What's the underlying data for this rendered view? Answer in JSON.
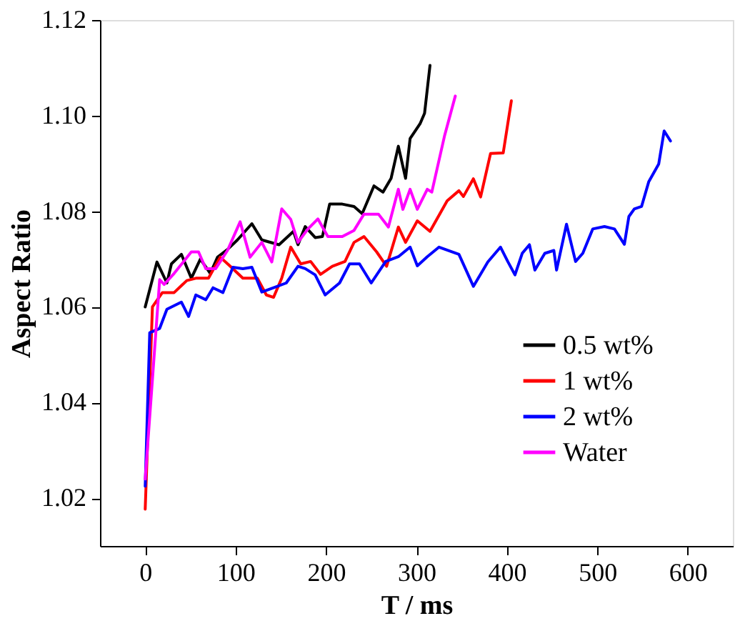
{
  "chart_data": {
    "type": "line",
    "xlabel": "T / ms",
    "ylabel": "Aspect Ratio",
    "xlim": [
      -50,
      650
    ],
    "xticks": [
      0,
      100,
      200,
      300,
      400,
      500,
      600
    ],
    "ylim": [
      1.01,
      1.12
    ],
    "yticks": [
      1.02,
      1.04,
      1.06,
      1.08,
      {
        "value": 1.1,
        "label": "1.10"
      },
      1.12
    ],
    "legend": "bottom right",
    "grid": false,
    "line_style": "solid",
    "series": [
      {
        "name": "0.5 wt%",
        "color": "#000000",
        "x": [
          0,
          13,
          24,
          29,
          40,
          51,
          61,
          72,
          80,
          91,
          102,
          118,
          129,
          148,
          164,
          169,
          177,
          188,
          196,
          204,
          218,
          231,
          240,
          253,
          263,
          272,
          280,
          288,
          293,
          304,
          309,
          315
        ],
        "values": [
          1.06,
          1.0694,
          1.065,
          1.069,
          1.071,
          1.066,
          1.07,
          1.067,
          1.0704,
          1.072,
          1.074,
          1.0774,
          1.074,
          1.073,
          1.0758,
          1.073,
          1.0768,
          1.0745,
          1.0747,
          1.0815,
          1.0815,
          1.081,
          1.0795,
          1.0853,
          1.084,
          1.0869,
          1.0936,
          1.0869,
          1.0952,
          1.0983,
          1.1005,
          1.1105
        ]
      },
      {
        "name": "1 wt%",
        "color": "#ff0000",
        "x": [
          0,
          8,
          19,
          32,
          46,
          56,
          70,
          83,
          94,
          108,
          124,
          134,
          142,
          151,
          161,
          172,
          183,
          194,
          207,
          221,
          231,
          242,
          256,
          267,
          280,
          288,
          301,
          315,
          334,
          347,
          352,
          363,
          371,
          382,
          396,
          405
        ],
        "values": [
          1.0177,
          1.06,
          1.063,
          1.063,
          1.0655,
          1.066,
          1.066,
          1.0704,
          1.0685,
          1.066,
          1.066,
          1.0625,
          1.062,
          1.066,
          1.0725,
          1.069,
          1.0695,
          1.0668,
          1.0685,
          1.0695,
          1.0735,
          1.0747,
          1.0715,
          1.0685,
          1.0767,
          1.0735,
          1.078,
          1.0758,
          1.0822,
          1.0843,
          1.0831,
          1.0868,
          1.083,
          1.0921,
          1.0922,
          1.1031
        ]
      },
      {
        "name": "2 wt%",
        "color": "#0000ff",
        "x": [
          0,
          5,
          16,
          24,
          40,
          48,
          56,
          67,
          75,
          86,
          97,
          108,
          118,
          129,
          142,
          156,
          169,
          177,
          188,
          199,
          215,
          226,
          237,
          250,
          266,
          280,
          293,
          301,
          312,
          325,
          347,
          363,
          379,
          393,
          401,
          409,
          417,
          425,
          431,
          442,
          452,
          455,
          466,
          476,
          484,
          495,
          508,
          519,
          530,
          535,
          541,
          549,
          557,
          568,
          574,
          581
        ],
        "values": [
          1.0225,
          1.0546,
          1.0555,
          1.0595,
          1.061,
          1.058,
          1.0625,
          1.0615,
          1.064,
          1.063,
          1.0683,
          1.068,
          1.0683,
          1.0631,
          1.064,
          1.065,
          1.0685,
          1.068,
          1.0667,
          1.0625,
          1.065,
          1.069,
          1.069,
          1.065,
          1.0695,
          1.0705,
          1.0725,
          1.0686,
          1.0705,
          1.0725,
          1.071,
          1.0643,
          1.0694,
          1.0725,
          1.0695,
          1.0667,
          1.0712,
          1.073,
          1.0677,
          1.0712,
          1.0718,
          1.0677,
          1.0773,
          1.0695,
          1.0712,
          1.0763,
          1.0768,
          1.0763,
          1.0731,
          1.0789,
          1.0805,
          1.081,
          1.0862,
          1.0899,
          1.0968,
          1.0947
        ]
      },
      {
        "name": "Water",
        "color": "#ff00ff",
        "x": [
          0,
          16,
          21,
          32,
          51,
          59,
          67,
          78,
          91,
          105,
          116,
          129,
          140,
          151,
          161,
          169,
          180,
          191,
          202,
          218,
          231,
          242,
          258,
          269,
          280,
          285,
          293,
          301,
          312,
          317,
          331,
          343
        ],
        "values": [
          1.024,
          1.0657,
          1.0647,
          1.067,
          1.0715,
          1.0715,
          1.068,
          1.068,
          1.0718,
          1.0778,
          1.0704,
          1.0735,
          1.0694,
          1.0805,
          1.0783,
          1.0735,
          1.0763,
          1.0784,
          1.0747,
          1.0747,
          1.076,
          1.0794,
          1.0794,
          1.0767,
          1.0846,
          1.0804,
          1.0846,
          1.0804,
          1.0846,
          1.084,
          1.0957,
          1.1041
        ]
      }
    ]
  }
}
